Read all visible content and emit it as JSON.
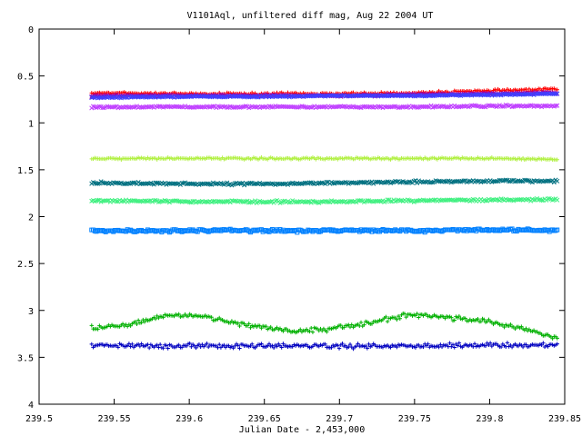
{
  "chart_data": {
    "type": "scatter",
    "title": "V1101Aql, unfiltered diff mag, Aug 22 2004 UT",
    "xlabel": "Julian Date - 2,453,000",
    "ylabel": "",
    "xlim": [
      239.5,
      239.85
    ],
    "ylim": [
      0,
      4
    ],
    "y_inverted": true,
    "grid": false,
    "legend": "none",
    "x_ticks": [
      239.5,
      239.55,
      239.6,
      239.65,
      239.7,
      239.75,
      239.8,
      239.85
    ],
    "x_tick_labels": [
      "239.5",
      "239.55",
      "239.6",
      "239.65",
      "239.7",
      "239.75",
      "239.8",
      "239.85"
    ],
    "y_ticks": [
      0,
      0.5,
      1,
      1.5,
      2,
      2.5,
      3,
      3.5,
      4
    ],
    "y_tick_labels": [
      "0",
      "0.5",
      "1",
      "1.5",
      "2",
      "2.5",
      "3",
      "3.5",
      "4"
    ],
    "x_range": [
      239.535,
      239.845
    ],
    "series": [
      {
        "color": "#ff0000",
        "marker": "plus",
        "x": [
          239.535,
          239.6,
          239.65,
          239.7,
          239.75,
          239.8,
          239.845
        ],
        "y": [
          0.68,
          0.69,
          0.69,
          0.69,
          0.68,
          0.66,
          0.64
        ],
        "scatter": 0.01
      },
      {
        "color": "#a000a0",
        "marker": "cross",
        "x": [
          239.535,
          239.6,
          239.65,
          239.7,
          239.75,
          239.8,
          239.845
        ],
        "y": [
          0.71,
          0.71,
          0.71,
          0.71,
          0.7,
          0.69,
          0.68
        ],
        "scatter": 0.008
      },
      {
        "color": "#4040ff",
        "marker": "cross",
        "x": [
          239.535,
          239.6,
          239.65,
          239.7,
          239.75,
          239.8,
          239.845
        ],
        "y": [
          0.73,
          0.72,
          0.72,
          0.71,
          0.71,
          0.7,
          0.69
        ],
        "scatter": 0.006
      },
      {
        "color": "#c040ff",
        "marker": "cross",
        "x": [
          239.535,
          239.6,
          239.65,
          239.7,
          239.75,
          239.8,
          239.845
        ],
        "y": [
          0.83,
          0.83,
          0.83,
          0.83,
          0.83,
          0.82,
          0.82
        ],
        "scatter": 0.008
      },
      {
        "color": "#b0f040",
        "marker": "plus",
        "x": [
          239.535,
          239.6,
          239.65,
          239.7,
          239.75,
          239.8,
          239.845
        ],
        "y": [
          1.38,
          1.38,
          1.38,
          1.38,
          1.38,
          1.38,
          1.39
        ],
        "scatter": 0.008
      },
      {
        "color": "#007080",
        "marker": "cross",
        "x": [
          239.535,
          239.6,
          239.65,
          239.7,
          239.75,
          239.8,
          239.845
        ],
        "y": [
          1.64,
          1.65,
          1.65,
          1.64,
          1.63,
          1.62,
          1.62
        ],
        "scatter": 0.01
      },
      {
        "color": "#40f080",
        "marker": "cross",
        "x": [
          239.535,
          239.6,
          239.65,
          239.7,
          239.75,
          239.8,
          239.845
        ],
        "y": [
          1.83,
          1.84,
          1.84,
          1.84,
          1.83,
          1.82,
          1.82
        ],
        "scatter": 0.01
      },
      {
        "color": "#0080ff",
        "marker": "square",
        "x": [
          239.535,
          239.6,
          239.65,
          239.7,
          239.75,
          239.8,
          239.845
        ],
        "y": [
          2.15,
          2.15,
          2.15,
          2.15,
          2.15,
          2.14,
          2.15
        ],
        "scatter": 0.012
      },
      {
        "color": "#00b000",
        "marker": "plus",
        "x": [
          239.535,
          239.56,
          239.585,
          239.61,
          239.64,
          239.67,
          239.69,
          239.72,
          239.745,
          239.77,
          239.8,
          239.825,
          239.845
        ],
        "y": [
          3.19,
          3.15,
          3.05,
          3.06,
          3.16,
          3.22,
          3.2,
          3.13,
          3.05,
          3.07,
          3.12,
          3.2,
          3.3
        ],
        "scatter": 0.02
      },
      {
        "color": "#0000c0",
        "marker": "plus",
        "x": [
          239.535,
          239.6,
          239.65,
          239.7,
          239.75,
          239.8,
          239.845
        ],
        "y": [
          3.37,
          3.38,
          3.38,
          3.38,
          3.38,
          3.37,
          3.37
        ],
        "scatter": 0.02
      }
    ]
  }
}
